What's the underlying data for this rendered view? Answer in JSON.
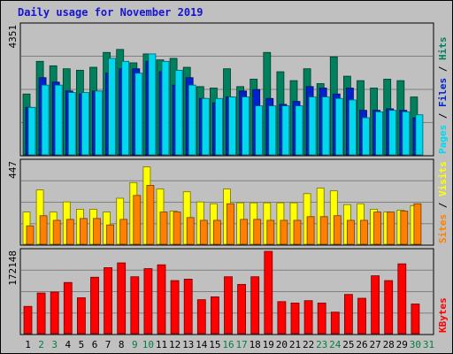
{
  "chart_data": {
    "type": "bar",
    "title": "Daily usage for November 2019",
    "categories": [
      "1",
      "2",
      "3",
      "4",
      "5",
      "6",
      "7",
      "8",
      "9",
      "10",
      "11",
      "12",
      "13",
      "14",
      "15",
      "16",
      "17",
      "18",
      "19",
      "20",
      "21",
      "22",
      "23",
      "24",
      "25",
      "26",
      "27",
      "28",
      "29",
      "30",
      "31"
    ],
    "weekend_days": [
      "2",
      "3",
      "9",
      "10",
      "16",
      "17",
      "23",
      "24",
      "30",
      "31"
    ],
    "panels": [
      {
        "name": "hits-files-pages",
        "ymax_label": "4351",
        "ymax": 4351,
        "series": [
          {
            "name": "Hits",
            "color": "#00805c",
            "values": [
              2050,
              3150,
              3000,
              2900,
              2850,
              2950,
              3450,
              3550,
              3100,
              3400,
              3200,
              3250,
              2950,
              2300,
              2250,
              2900,
              2300,
              2550,
              3450,
              2800,
              2500,
              2900,
              2400,
              3300,
              2650,
              2500,
              2250,
              2550,
              2500,
              1950,
              0
            ]
          },
          {
            "name": "Files",
            "color": "#0022cc",
            "values": [
              1600,
              2600,
              2450,
              2150,
              2050,
              2150,
              2750,
              2900,
              2900,
              3150,
              2800,
              2350,
              2600,
              1900,
              1750,
              1950,
              2150,
              2200,
              1900,
              1700,
              1800,
              2300,
              2250,
              2050,
              2250,
              1500,
              1500,
              1550,
              1500,
              1250,
              0
            ]
          },
          {
            "name": "Pages",
            "color": "#00d8f0",
            "values": [
              1600,
              2350,
              2350,
              2100,
              2100,
              2150,
              3250,
              3150,
              2750,
              3400,
              3150,
              2850,
              2350,
              1900,
              1900,
              1950,
              1950,
              1650,
              1650,
              1650,
              1650,
              1950,
              1950,
              1900,
              1850,
              1250,
              1450,
              1500,
              1450,
              1350,
              0
            ]
          }
        ]
      },
      {
        "name": "visits-sites",
        "ymax_label": "447",
        "ymax": 447,
        "series": [
          {
            "name": "Visits",
            "color": "#ffff00",
            "values": [
              175,
              295,
              175,
              230,
              190,
              190,
              175,
              250,
              335,
              420,
              300,
              180,
              285,
              230,
              220,
              300,
              225,
              225,
              225,
              225,
              225,
              275,
              305,
              290,
              215,
              220,
              190,
              175,
              185,
              210,
              0
            ]
          },
          {
            "name": "Sites",
            "color": "#ff8000",
            "values": [
              100,
              155,
              130,
              135,
              140,
              140,
              105,
              135,
              265,
              320,
              175,
              175,
              145,
              130,
              130,
              220,
              135,
              135,
              130,
              130,
              130,
              150,
              150,
              155,
              130,
              130,
              175,
              175,
              180,
              220,
              0
            ]
          }
        ]
      },
      {
        "name": "kbytes",
        "ymax_label": "172148",
        "ymax": 172148,
        "series": [
          {
            "name": "KBytes",
            "color": "#ff0000",
            "values": [
              57000,
              85000,
              87000,
              107000,
              75000,
              118000,
              138000,
              148000,
              119000,
              136000,
              144000,
              111000,
              114000,
              71000,
              77000,
              119000,
              103000,
              119000,
              172148,
              67000,
              64000,
              69000,
              64000,
              45000,
              82000,
              74000,
              121000,
              111000,
              146000,
              62000,
              0
            ]
          }
        ]
      }
    ],
    "right_labels": [
      {
        "panel": "hits-files-pages",
        "parts": [
          "Pages",
          "Files",
          "Hits"
        ],
        "colors": [
          "#00d8f0",
          "#0022cc",
          "#00805c"
        ]
      },
      {
        "panel": "visits-sites",
        "parts": [
          "Sites",
          "Visits"
        ],
        "colors": [
          "#ff8000",
          "#ffff00"
        ]
      },
      {
        "panel": "kbytes",
        "parts": [
          "KBytes"
        ],
        "colors": [
          "#ff0000"
        ]
      }
    ],
    "separator": " / ",
    "weekday_label_color": "#000000",
    "weekend_label_color": "#008040"
  }
}
